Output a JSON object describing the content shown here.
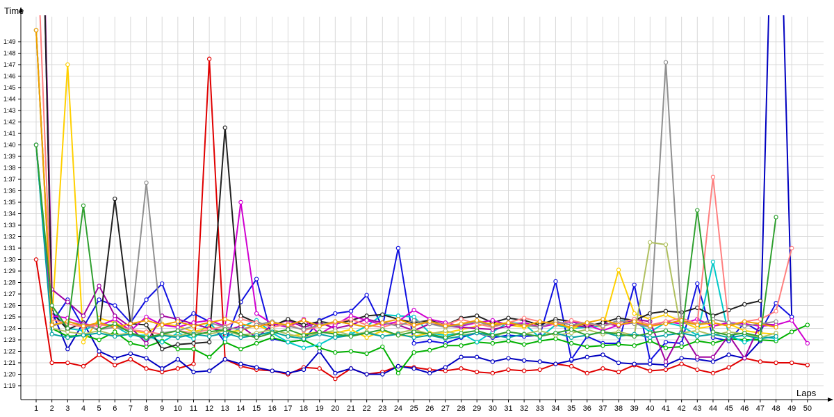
{
  "chart_data": {
    "type": "line",
    "xlabel": "Laps",
    "ylabel": "Time",
    "x_ticks": [
      "1",
      "2",
      "3",
      "4",
      "5",
      "6",
      "7",
      "8",
      "9",
      "10",
      "11",
      "12",
      "13",
      "14",
      "15",
      "16",
      "17",
      "18",
      "19",
      "20",
      "21",
      "22",
      "23",
      "24",
      "25",
      "26",
      "27",
      "28",
      "29",
      "30",
      "31",
      "32",
      "33",
      "34",
      "35",
      "36",
      "37",
      "38",
      "39",
      "40",
      "41",
      "42",
      "43",
      "44",
      "45",
      "46",
      "47",
      "48",
      "49",
      "50"
    ],
    "y_ticks": [
      "1:19",
      "1:20",
      "1:21",
      "1:22",
      "1:23",
      "1:24",
      "1:25",
      "1:26",
      "1:27",
      "1:28",
      "1:29",
      "1:30",
      "1:31",
      "1:32",
      "1:33",
      "1:34",
      "1:35",
      "1:36",
      "1:37",
      "1:38",
      "1:39",
      "1:40",
      "1:41",
      "1:42",
      "1:43",
      "1:44",
      "1:45",
      "1:46",
      "1:47",
      "1:48",
      "1:49"
    ],
    "xlim": [
      1,
      50
    ],
    "ylim_seconds": [
      78.3,
      111.2
    ],
    "grid": true,
    "legend": "none",
    "series": [
      {
        "color": "#e00000",
        "values": [
          90,
          81,
          81,
          80.7,
          81.7,
          80.8,
          81.3,
          80.5,
          80.2,
          80.5,
          80.9,
          107.5,
          81.3,
          80.7,
          80.4,
          80.3,
          80,
          80.6,
          80.5,
          79.6,
          80.5,
          80,
          80.2,
          80.7,
          80.6,
          80.4,
          80.3,
          80.5,
          80.2,
          80.1,
          80.4,
          80.3,
          80.4,
          80.9,
          80.7,
          80.1,
          80.5,
          80.2,
          80.8,
          80.3,
          80.4,
          80.9,
          80.4,
          80.1,
          80.6,
          81.4,
          81.1,
          81,
          81,
          80.8
        ]
      },
      {
        "color": "#0000c0",
        "values": [
          145,
          85.5,
          82.2,
          84.5,
          82,
          81.4,
          81.8,
          81.4,
          80.5,
          81.3,
          80.2,
          80.3,
          81.3,
          80.9,
          80.6,
          80.3,
          80.1,
          80.4,
          82,
          80.1,
          80.5,
          80,
          80,
          80.7,
          80.5,
          80.1,
          80.6,
          81.5,
          81.5,
          81.1,
          81.4,
          81.2,
          81.1,
          80.9,
          81.2,
          81.5,
          81.7,
          81,
          80.9,
          80.9,
          80.8,
          81.4,
          81.3,
          81.1,
          81.7,
          81.4,
          82.9,
          136,
          85,
          null
        ]
      },
      {
        "color": "#1010e0",
        "values": [
          110,
          84.5,
          86.5,
          84.1,
          86.5,
          86,
          84.5,
          86.5,
          87.9,
          84.3,
          85.3,
          84.6,
          82.8,
          86.3,
          88.3,
          83.1,
          82.8,
          83,
          84.7,
          85.3,
          85.5,
          86.9,
          84.1,
          91,
          82.7,
          82.9,
          82.7,
          83.2,
          83.6,
          83.2,
          83.4,
          83.3,
          83.4,
          88.1,
          81.3,
          83.3,
          82.7,
          82.7,
          87.8,
          81.2,
          82.8,
          82.7,
          87.9,
          83.2,
          82.9,
          84.5,
          83.7,
          86.2,
          85,
          null
        ]
      },
      {
        "color": "#00b000",
        "values": [
          100,
          84,
          83.3,
          83.4,
          83,
          83.7,
          82.7,
          82.4,
          82.9,
          82.2,
          82.2,
          81.5,
          82.8,
          82.2,
          82.7,
          83.2,
          82.8,
          83,
          82.3,
          81.9,
          82,
          81.8,
          82.4,
          80.1,
          81.9,
          82.1,
          82.5,
          82.5,
          82.8,
          82.7,
          82.9,
          82.6,
          82.9,
          83.1,
          82.7,
          82.4,
          82.5,
          82.6,
          82.5,
          82.9,
          82.3,
          82.4,
          82.9,
          82.7,
          83.1,
          83,
          83,
          82.9,
          83.7,
          84.3
        ]
      },
      {
        "color": "#00c8c8",
        "values": [
          100,
          85.5,
          84,
          83.8,
          84.5,
          84.2,
          83.4,
          83.4,
          82.8,
          83.6,
          83.1,
          84.5,
          83.1,
          84.1,
          84.7,
          83.6,
          82.8,
          82.3,
          82.6,
          83.3,
          83.5,
          84.2,
          85.2,
          85.1,
          85,
          83.6,
          83.4,
          83.6,
          82.8,
          83.7,
          84.5,
          84.4,
          83.2,
          84.3,
          84,
          84.1,
          84.2,
          84.7,
          84.6,
          83.7,
          84.5,
          84.2,
          83.4,
          89.8,
          83.4,
          82.8,
          83.3,
          83.1,
          null,
          null
        ]
      },
      {
        "color": "#ffd000",
        "values": [
          110,
          84.6,
          107,
          82.8,
          84.9,
          84.5,
          83.8,
          83.6,
          84.4,
          84.2,
          83.7,
          84.1,
          83.7,
          83.8,
          84.3,
          83.7,
          83.3,
          83.5,
          83.7,
          83.6,
          83.9,
          83.2,
          83.8,
          83.4,
          83.3,
          83.6,
          83.6,
          83.9,
          84.2,
          84.5,
          84.3,
          84.1,
          84.4,
          84.7,
          83.9,
          84.5,
          84.1,
          89.1,
          85.3,
          84.8,
          85.2,
          84.6,
          84,
          84.2,
          84.4,
          83.8,
          83.6,
          83.5,
          null,
          null
        ]
      },
      {
        "color": "#a000a0",
        "values": [
          145,
          87.4,
          86.3,
          85.1,
          87.7,
          85.1,
          84.1,
          82.7,
          85.1,
          84.8,
          84.4,
          84,
          83.8,
          84.2,
          83.2,
          84.3,
          84.7,
          84.1,
          84.5,
          84,
          84.3,
          84.8,
          84.5,
          84.3,
          83.8,
          84.4,
          84.2,
          84.1,
          84,
          83.9,
          84.2,
          84.5,
          84.1,
          84.6,
          84.3,
          84.1,
          84.5,
          84.2,
          84.8,
          84.6,
          81.1,
          83.7,
          81.5,
          81.5,
          83.4,
          81.4,
          84.4,
          84.3,
          null,
          null
        ]
      },
      {
        "color": "#202020",
        "values": [
          145,
          85.4,
          83.9,
          84.5,
          83.8,
          95.3,
          84.4,
          84.3,
          82.2,
          82.6,
          82.7,
          82.8,
          101.5,
          85.1,
          84.5,
          84.2,
          84.8,
          84.3,
          84.6,
          84.4,
          84.7,
          85.1,
          85.2,
          84.8,
          84.5,
          84.7,
          84.3,
          84.9,
          85.1,
          84.5,
          84.9,
          84.7,
          84.3,
          84.8,
          84.6,
          84.2,
          84.5,
          84.9,
          84.7,
          85.3,
          85.5,
          85.4,
          85.8,
          85.1,
          85.6,
          86.1,
          86.4,
          null,
          null,
          null
        ]
      },
      {
        "color": "#d000d0",
        "values": [
          100,
          85.1,
          84.9,
          84.4,
          84.2,
          84.8,
          83.8,
          85,
          84.3,
          84.1,
          84.5,
          84.7,
          84.2,
          95,
          85.3,
          84.4,
          84.1,
          84.8,
          83.5,
          84.3,
          85.1,
          84.7,
          84.3,
          84.6,
          85.6,
          84.8,
          84.5,
          84.2,
          84.5,
          84.7,
          84.3,
          84.5,
          84.1,
          84.4,
          84.6,
          84.3,
          83.8,
          84.3,
          84.5,
          84.2,
          84.6,
          84.4,
          84.8,
          84.2,
          84.5,
          84.4,
          84.2,
          84.3,
          84.7,
          82.7
        ]
      },
      {
        "color": "#ff8080",
        "values": [
          120,
          84.8,
          84.4,
          84.1,
          84.3,
          84.2,
          83.9,
          83.7,
          83.5,
          83.8,
          83.6,
          83.9,
          84.2,
          84.8,
          84.5,
          84.1,
          84.4,
          83.8,
          84.2,
          84.5,
          84.8,
          84.3,
          84.1,
          84.5,
          84.2,
          84.6,
          84.3,
          84.8,
          84.4,
          84.1,
          84.5,
          84.9,
          84.6,
          84.3,
          84.7,
          84.4,
          84.2,
          84.5,
          84.8,
          84.3,
          84.6,
          84.9,
          84.4,
          97.2,
          84.3,
          84.6,
          84.8,
          85.5,
          91,
          null
        ]
      },
      {
        "color": "#909090",
        "values": [
          110,
          84.2,
          84.6,
          84.3,
          83.9,
          84.1,
          83.8,
          96.7,
          83.6,
          83.8,
          84.2,
          84.5,
          84.1,
          83.9,
          84.3,
          84.6,
          84.2,
          83.9,
          84.3,
          84.6,
          84.4,
          84.1,
          84.5,
          84.2,
          84.7,
          84.4,
          84.1,
          84.3,
          84.6,
          84.2,
          84.5,
          84.3,
          84.1,
          84.6,
          84.3,
          84.5,
          84.2,
          84.7,
          84.4,
          84.1,
          107.2,
          84.6,
          84.3,
          84.8,
          84.5,
          84.2,
          84.4,
          84.6,
          null,
          null
        ]
      },
      {
        "color": "#b0c060",
        "values": [
          110,
          84,
          83.7,
          83.5,
          83.8,
          83.4,
          83.6,
          83.2,
          83.5,
          83.3,
          83.7,
          83.5,
          83.8,
          83.4,
          83.6,
          83.9,
          83.5,
          83.2,
          83.6,
          83.8,
          83.4,
          83.7,
          83.3,
          83.6,
          83.9,
          83.5,
          83.8,
          83.4,
          83.6,
          83.3,
          83.7,
          83.5,
          83.8,
          83.4,
          83.6,
          83.9,
          83.5,
          83.7,
          83.4,
          91.5,
          91.3,
          83.6,
          83.8,
          83.4,
          83.7,
          83.5,
          83.2,
          83.6,
          null,
          null
        ]
      },
      {
        "color": "#00a0a0",
        "values": [
          100,
          83.5,
          83.2,
          83.4,
          83.6,
          83.3,
          83.5,
          83.1,
          83.4,
          83.2,
          83.5,
          83.3,
          83.6,
          83.2,
          83.4,
          83.7,
          83.3,
          83.1,
          83.5,
          83.2,
          83.4,
          83.6,
          83.3,
          83.5,
          83.2,
          83.4,
          83.1,
          83.3,
          83.6,
          83.4,
          83.2,
          83.5,
          83.3,
          83.6,
          83.2,
          83.4,
          83.7,
          83.3,
          83.5,
          83.2,
          83.4,
          83.6,
          83.3,
          83.5,
          83.2,
          83.4,
          83.1,
          83.3,
          null,
          null
        ]
      },
      {
        "color": "#f0a000",
        "values": [
          110,
          84.3,
          84.6,
          84.2,
          84.5,
          84.1,
          84.4,
          84.7,
          84.3,
          84.6,
          84.2,
          84.5,
          84.8,
          84.4,
          84.1,
          84.5,
          84.3,
          84.7,
          84.2,
          84.6,
          84.4,
          84.1,
          84.5,
          84.8,
          84.3,
          84.6,
          84.2,
          84.4,
          84.7,
          84.3,
          84.5,
          84.2,
          84.6,
          84.4,
          84.1,
          84.5,
          84.8,
          84.3,
          84.6,
          84.2,
          84.4,
          84.7,
          84.3,
          84.5,
          84.2,
          84.6,
          84.4,
          84.1,
          null,
          null
        ]
      },
      {
        "color": "#30a030",
        "values": [
          100,
          86,
          84,
          94.7,
          83.9,
          84.4,
          83.6,
          83.2,
          83.5,
          83.8,
          83.4,
          83.7,
          83.9,
          83.5,
          83.2,
          83.6,
          83.9,
          83.4,
          83.7,
          83.5,
          83.3,
          83.6,
          83.9,
          83.4,
          83.7,
          83.5,
          83.2,
          83.6,
          83.8,
          83.4,
          83.7,
          83.5,
          83.3,
          83.6,
          83.9,
          83.4,
          83.7,
          83.5,
          83.3,
          83.6,
          83.8,
          83.4,
          94.3,
          83.7,
          83.4,
          83.6,
          83.3,
          93.7,
          null,
          null
        ]
      }
    ]
  }
}
